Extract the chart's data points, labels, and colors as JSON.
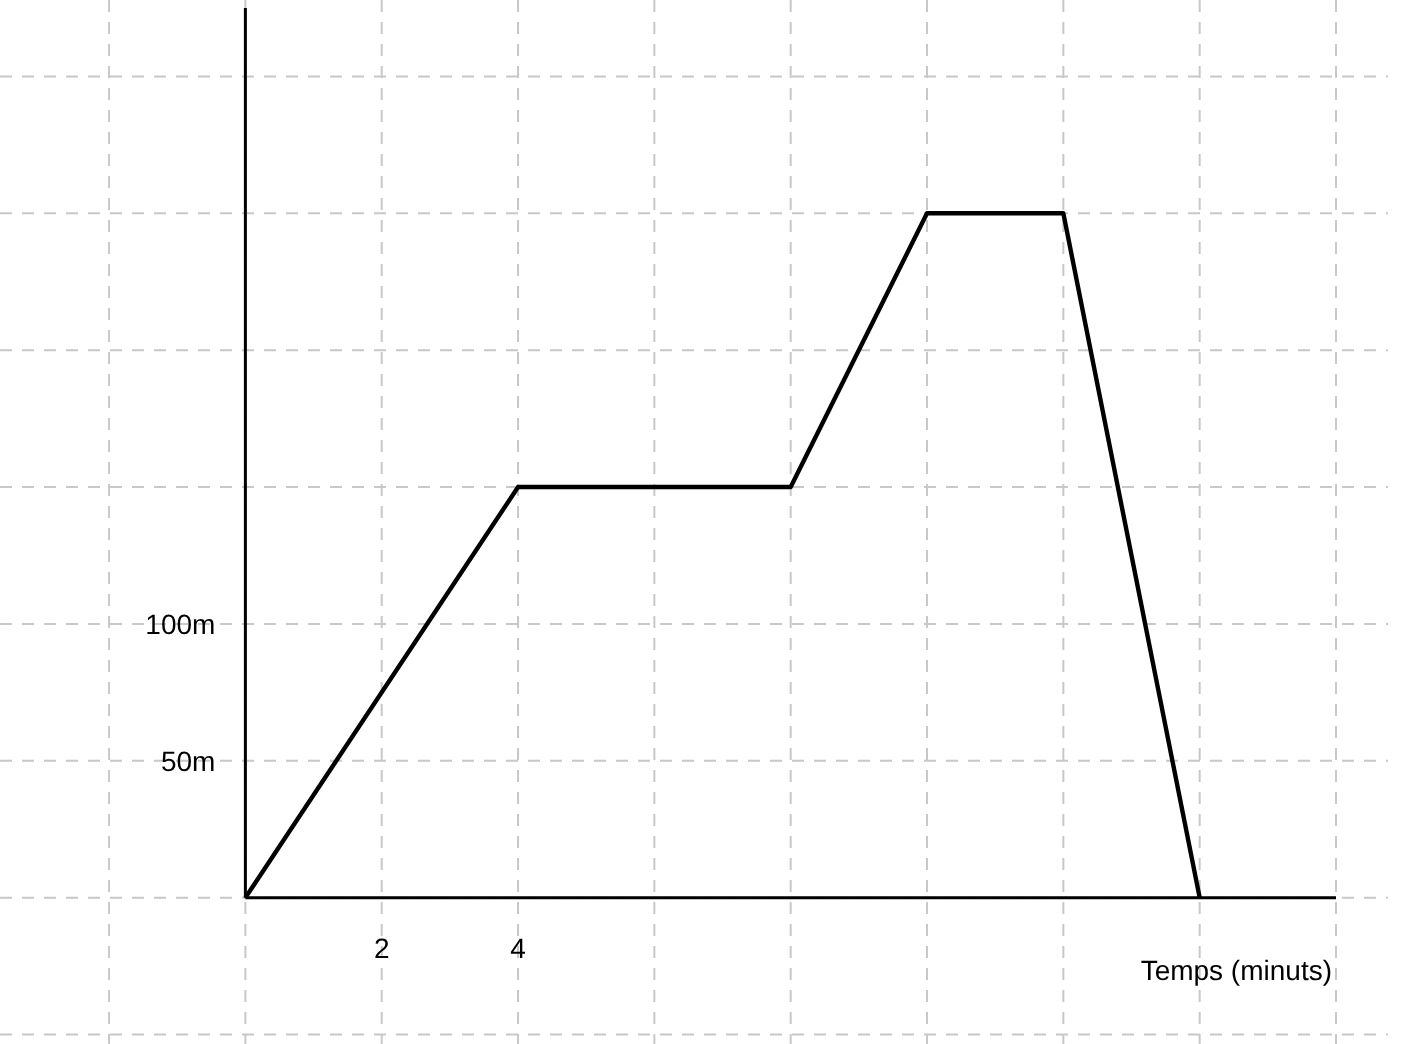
{
  "chart_data": {
    "type": "line",
    "xlabel": "Temps (minuts)",
    "x": [
      0,
      4,
      8,
      10,
      12,
      14
    ],
    "series": [
      {
        "color": "#000000",
        "values": [
          0,
          150,
          150,
          250,
          250,
          0
        ]
      }
    ],
    "xlim": [
      -3.6,
      16
    ],
    "ylim": [
      -52,
      325
    ],
    "xticks": [
      {
        "value": -2,
        "label": null
      },
      {
        "value": 0,
        "label": null
      },
      {
        "value": 2,
        "label": "2"
      },
      {
        "value": 4,
        "label": "4"
      },
      {
        "value": 6,
        "label": null
      },
      {
        "value": 8,
        "label": null
      },
      {
        "value": 10,
        "label": null
      },
      {
        "value": 12,
        "label": null
      },
      {
        "value": 14,
        "label": null
      },
      {
        "value": 16,
        "label": null
      }
    ],
    "yticks": [
      {
        "value": -50,
        "label": null
      },
      {
        "value": 0,
        "label": null
      },
      {
        "value": 50,
        "label": "50m"
      },
      {
        "value": 100,
        "label": "100m"
      },
      {
        "value": 150,
        "label": null
      },
      {
        "value": 200,
        "label": null
      },
      {
        "value": 250,
        "label": null
      },
      {
        "value": 300,
        "label": null
      }
    ],
    "grid": true,
    "marker": "none",
    "line_style": "solid"
  }
}
